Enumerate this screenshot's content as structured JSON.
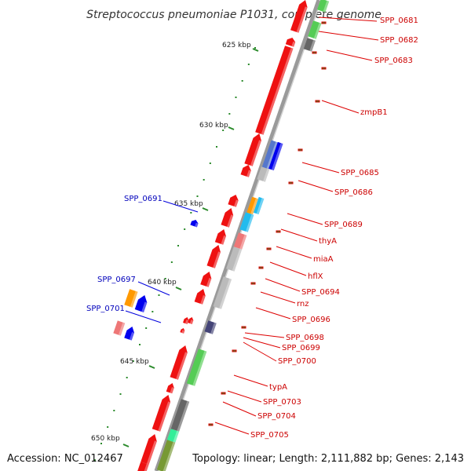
{
  "title": "Streptococcus pneumoniae P1031, complete genome",
  "footer": {
    "accession": "Accession: NC_012467",
    "summary": "Topology: linear; Length: 2,111,882 bp; Genes: 2,143"
  },
  "colors": {
    "backbone": "#808080",
    "forward_label": "#cc0000",
    "reverse_label": "#0000bb",
    "tick": "#2a8a2a"
  },
  "scale_labels": [
    "625 kbp",
    "630 kbp",
    "635 kbp",
    "640 kbp",
    "645 kbp",
    "650 kbp"
  ],
  "forward_gene_labels": [
    "SPP_0681",
    "SPP_0682",
    "SPP_0683",
    "zmpB1",
    "SPP_0685",
    "SPP_0686",
    "SPP_0689",
    "thyA",
    "miaA",
    "hflX",
    "SPP_0694",
    "rnz",
    "SPP_0696",
    "SPP_0698",
    "SPP_0699",
    "SPP_0700",
    "typA",
    "SPP_0703",
    "SPP_0704",
    "SPP_0705"
  ],
  "reverse_gene_labels": [
    "SPP_0691",
    "SPP_0697",
    "SPP_0701"
  ]
}
